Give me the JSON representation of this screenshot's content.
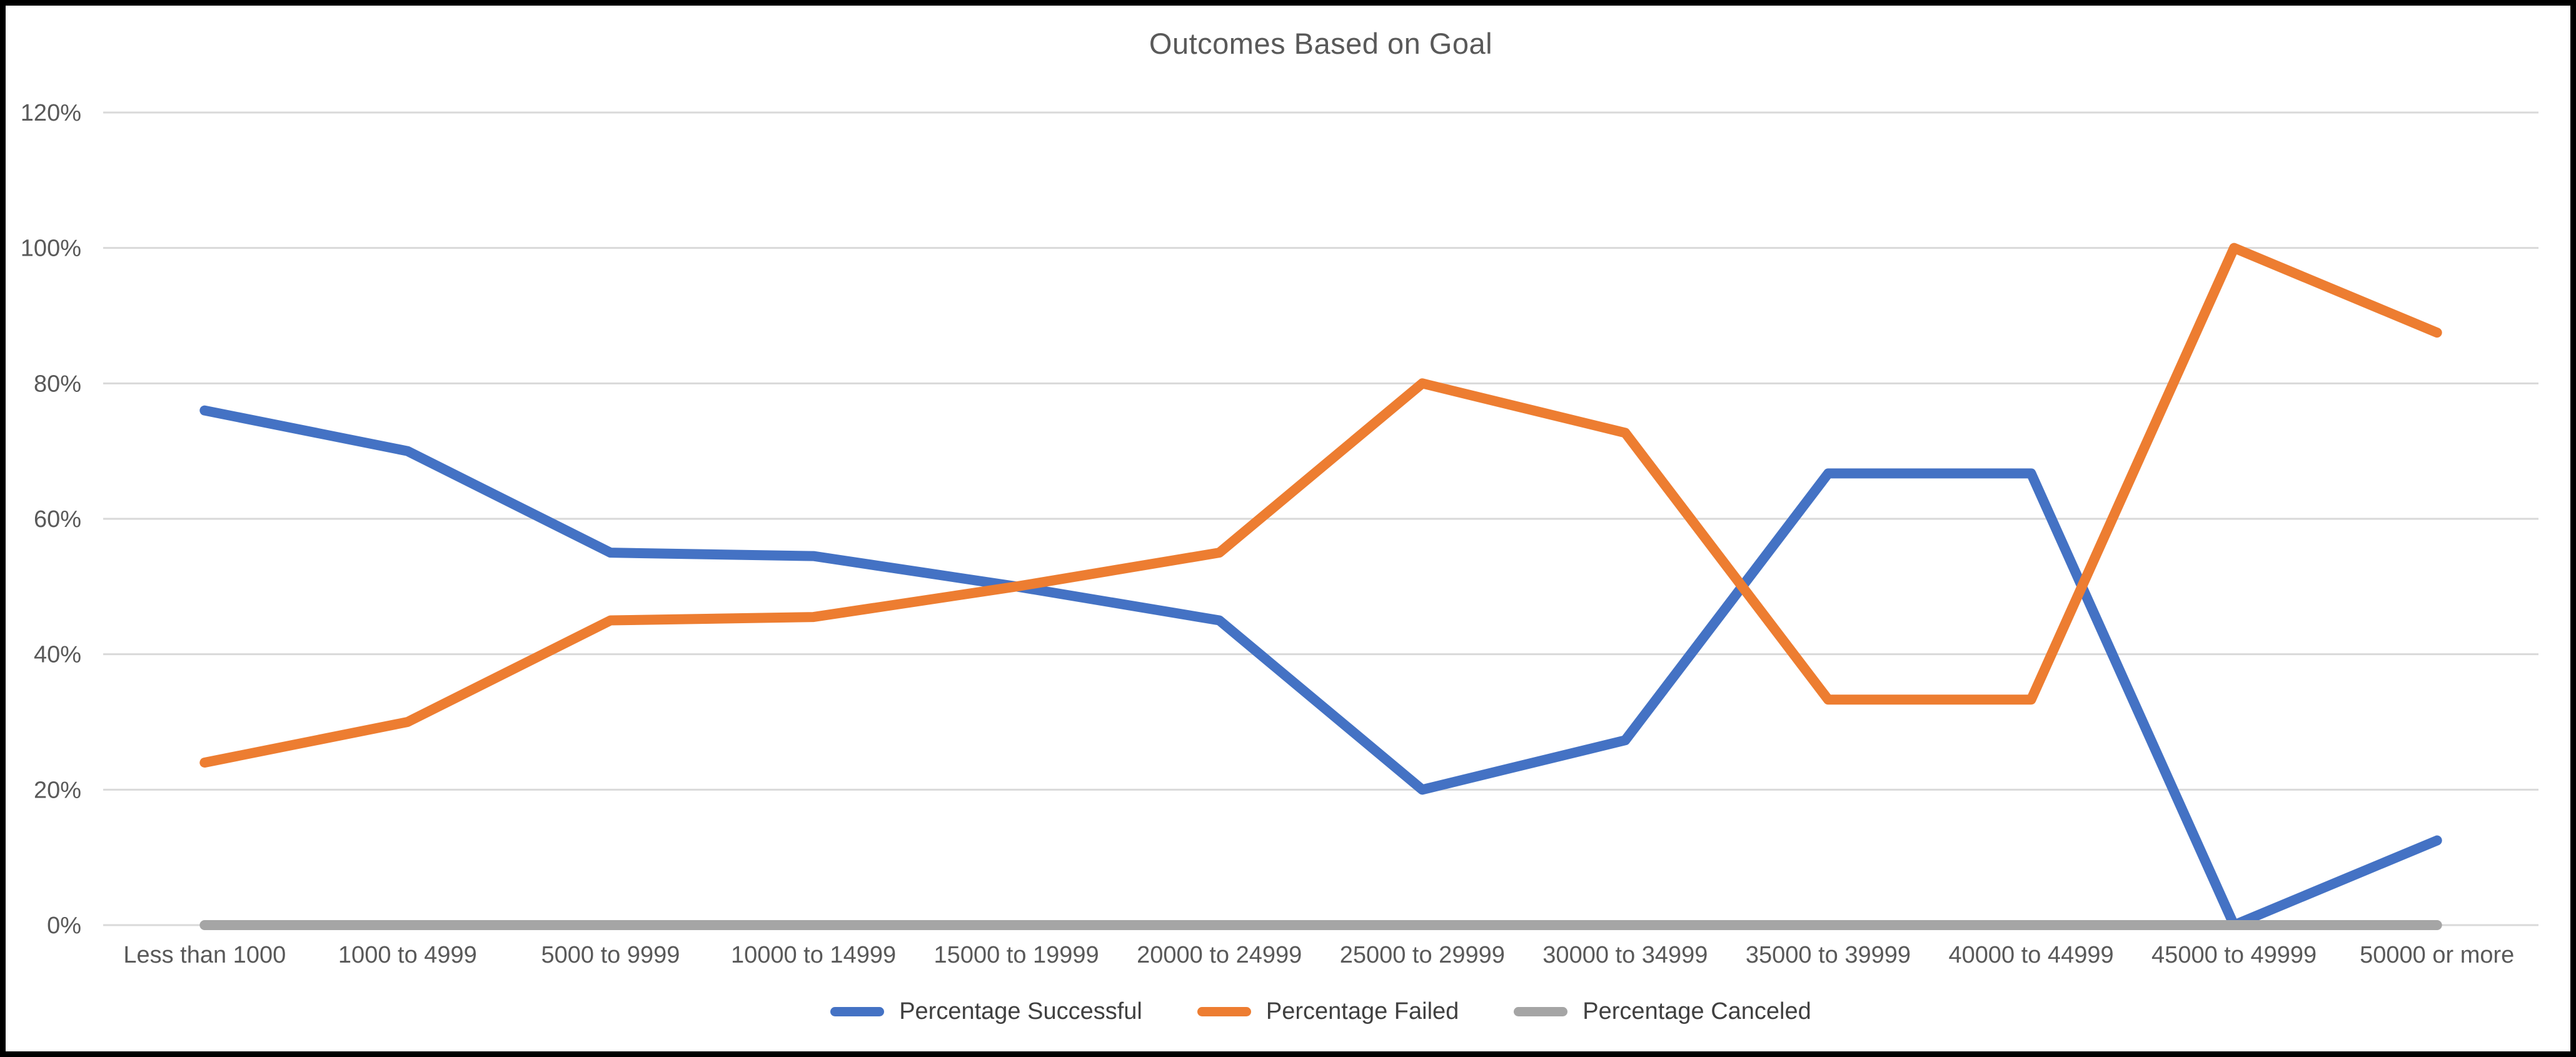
{
  "chart_data": {
    "type": "line",
    "title": "Outcomes Based on Goal",
    "categories": [
      "Less than 1000",
      "1000 to 4999",
      "5000 to 9999",
      "10000 to 14999",
      "15000 to 19999",
      "20000 to 24999",
      "25000 to 29999",
      "30000 to 34999",
      "35000 to 39999",
      "40000 to 44999",
      "45000 to 49999",
      "50000 or more"
    ],
    "series": [
      {
        "name": "Percentage Successful",
        "color": "#4472C4",
        "values": [
          76,
          70,
          55,
          54.5,
          50,
          45,
          20,
          27.3,
          66.7,
          66.7,
          0,
          12.5
        ]
      },
      {
        "name": "Percentage Failed",
        "color": "#ED7D31",
        "values": [
          24,
          30,
          45,
          45.5,
          50,
          55,
          80,
          72.7,
          33.3,
          33.3,
          100,
          87.5
        ]
      },
      {
        "name": "Percentage Canceled",
        "color": "#A5A5A5",
        "values": [
          0,
          0,
          0,
          0,
          0,
          0,
          0,
          0,
          0,
          0,
          0,
          0
        ]
      }
    ],
    "y_axis": {
      "tick_labels": [
        "0%",
        "20%",
        "40%",
        "60%",
        "80%",
        "100%",
        "120%"
      ],
      "tick_values": [
        0,
        20,
        40,
        60,
        80,
        100,
        120
      ],
      "range": [
        0,
        120
      ]
    },
    "xlabel": "",
    "ylabel": "",
    "grid": true,
    "legend_position": "bottom",
    "gridline_color": "#D9D9D9",
    "text_colors": {
      "title": "#595959",
      "axis": "#595959",
      "legend": "#404040"
    }
  }
}
